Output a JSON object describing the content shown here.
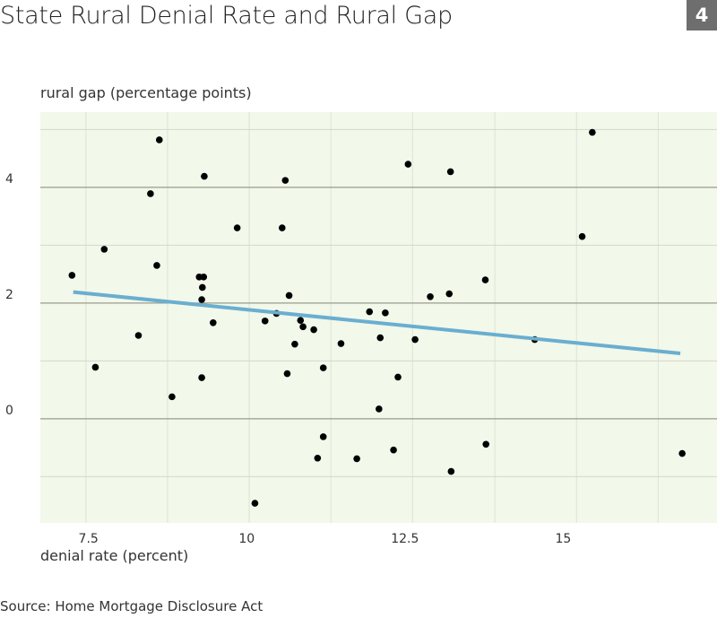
{
  "badge": "4",
  "chart_data": {
    "type": "scatter",
    "title": "State Rural Denial Rate and Rural Gap",
    "xlabel": "denial rate (percent)",
    "ylabel": "rural gap (percentage points)",
    "source": "Source: Home Mortgage Disclosure Act",
    "xlim": [
      6.74,
      17.43
    ],
    "ylim": [
      -1.8,
      5.3
    ],
    "x_ticks": [
      7.5,
      10,
      12.5,
      15
    ],
    "x_tick_labels": [
      "7.5",
      "10",
      "12.5",
      "15"
    ],
    "y_ticks": [
      0,
      2,
      4
    ],
    "y_tick_labels": [
      "0",
      "2",
      "4"
    ],
    "y_gridlines": [
      -1,
      0,
      1,
      2,
      3,
      4,
      5
    ],
    "x_gridlines": [
      7.46,
      8.75,
      10.04,
      11.33,
      12.62,
      13.92,
      15.21,
      16.5
    ],
    "grid": true,
    "colors": {
      "background": "#f2f8ea",
      "points": "#000000",
      "trend": "#6aaed0",
      "badge": "#6e6e6e"
    },
    "points": [
      [
        8.62,
        4.82
      ],
      [
        9.33,
        4.19
      ],
      [
        10.61,
        4.12
      ],
      [
        8.48,
        3.89
      ],
      [
        9.85,
        3.3
      ],
      [
        10.56,
        3.3
      ],
      [
        7.75,
        2.93
      ],
      [
        8.58,
        2.65
      ],
      [
        7.24,
        2.48
      ],
      [
        9.25,
        2.45
      ],
      [
        9.32,
        2.45
      ],
      [
        9.3,
        2.27
      ],
      [
        9.29,
        2.06
      ],
      [
        10.67,
        2.13
      ],
      [
        10.47,
        1.82
      ],
      [
        11.94,
        1.85
      ],
      [
        9.47,
        1.66
      ],
      [
        8.29,
        1.44
      ],
      [
        10.29,
        1.69
      ],
      [
        10.85,
        1.7
      ],
      [
        10.89,
        1.59
      ],
      [
        11.06,
        1.54
      ],
      [
        10.76,
        1.29
      ],
      [
        11.49,
        1.3
      ],
      [
        7.61,
        0.89
      ],
      [
        11.21,
        0.88
      ],
      [
        9.29,
        0.71
      ],
      [
        10.64,
        0.78
      ],
      [
        8.82,
        0.38
      ],
      [
        11.21,
        -0.31
      ],
      [
        11.12,
        -0.68
      ],
      [
        11.74,
        -0.69
      ],
      [
        10.13,
        -1.46
      ],
      [
        12.19,
        1.83
      ],
      [
        12.11,
        1.4
      ],
      [
        12.66,
        1.37
      ],
      [
        14.55,
        1.37
      ],
      [
        12.39,
        0.72
      ],
      [
        12.09,
        0.17
      ],
      [
        12.32,
        -0.54
      ],
      [
        13.78,
        -0.44
      ],
      [
        13.23,
        -0.91
      ],
      [
        16.88,
        -0.6
      ],
      [
        12.55,
        4.4
      ],
      [
        13.22,
        4.27
      ],
      [
        15.46,
        4.95
      ],
      [
        15.3,
        3.15
      ],
      [
        12.9,
        2.11
      ],
      [
        13.2,
        2.16
      ],
      [
        13.77,
        2.4
      ]
    ],
    "trend_line": [
      [
        7.26,
        2.19
      ],
      [
        16.85,
        1.13
      ]
    ]
  }
}
